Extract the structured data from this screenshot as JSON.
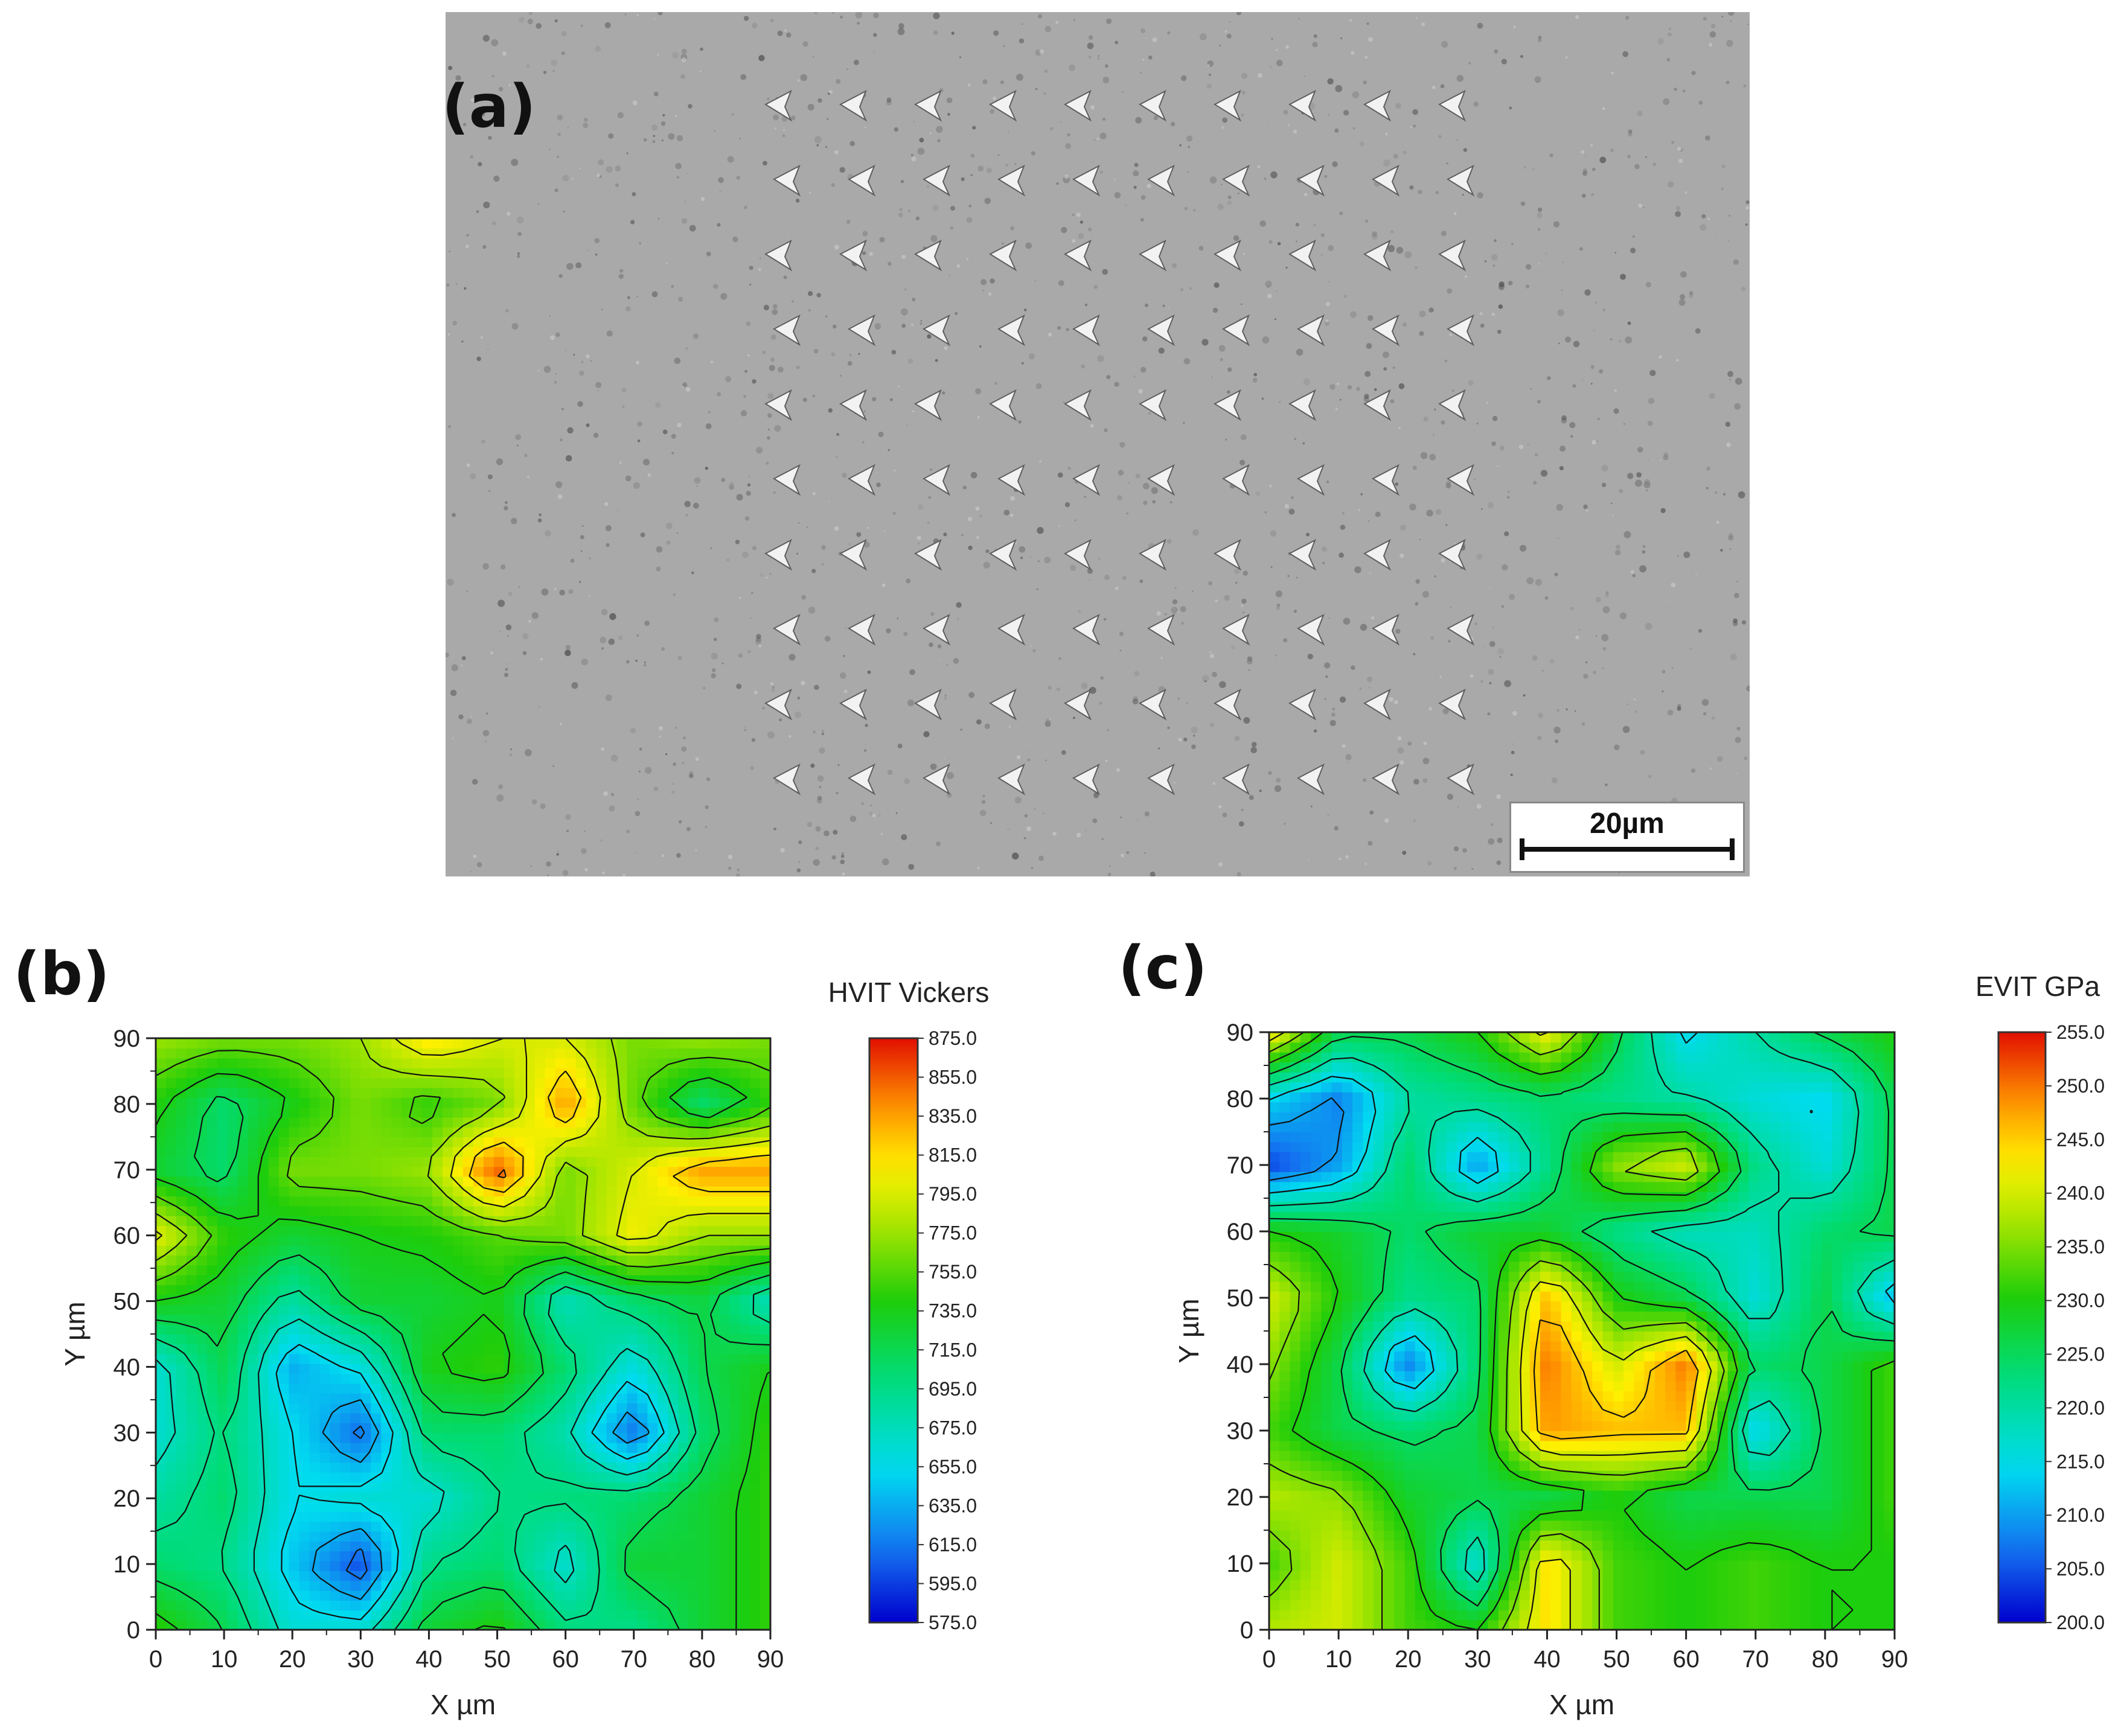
{
  "panels": {
    "a": {
      "letter": "(a)",
      "scalebar": "20µm"
    },
    "b": {
      "letter": "(b)"
    },
    "c": {
      "letter": "(c)"
    }
  },
  "chart_data": [
    {
      "type": "heatmap",
      "panel": "b",
      "title": "",
      "colorbar_title": "HVIT Vickers",
      "xlabel": "X µm",
      "ylabel": "Y µm",
      "xlim": [
        0,
        90
      ],
      "ylim": [
        0,
        90
      ],
      "x_ticks": [
        0,
        10,
        20,
        30,
        40,
        50,
        60,
        70,
        80,
        90
      ],
      "y_ticks": [
        0,
        10,
        20,
        30,
        40,
        50,
        60,
        70,
        80,
        90
      ],
      "colorbar_range": [
        575,
        875
      ],
      "colorbar_ticks": [
        "875.0",
        "855.0",
        "835.0",
        "815.0",
        "795.0",
        "775.0",
        "755.0",
        "735.0",
        "715.0",
        "695.0",
        "675.0",
        "655.0",
        "635.0",
        "615.0",
        "595.0",
        "575.0"
      ],
      "x": [
        0,
        10,
        20,
        30,
        40,
        50,
        60,
        70,
        80,
        90
      ],
      "y": [
        0,
        10,
        20,
        30,
        40,
        50,
        60,
        70,
        80,
        90
      ],
      "z": [
        [
          745,
          715,
          665,
          665,
          725,
          740,
          700,
          695,
          725,
          745
        ],
        [
          705,
          695,
          645,
          600,
          695,
          705,
          665,
          725,
          725,
          745
        ],
        [
          685,
          705,
          655,
          665,
          665,
          695,
          700,
          705,
          725,
          745
        ],
        [
          665,
          700,
          655,
          610,
          705,
          705,
          680,
          615,
          705,
          745
        ],
        [
          665,
          715,
          635,
          660,
          735,
          745,
          705,
          660,
          715,
          735
        ],
        [
          735,
          725,
          685,
          725,
          725,
          735,
          675,
          705,
          720,
          675
        ],
        [
          800,
          745,
          725,
          735,
          740,
          755,
          765,
          805,
          775,
          775
        ],
        [
          725,
          705,
          765,
          765,
          775,
          855,
          765,
          795,
          835,
          835
        ],
        [
          740,
          705,
          735,
          765,
          745,
          765,
          835,
          760,
          705,
          745
        ],
        [
          775,
          765,
          765,
          775,
          815,
          795,
          795,
          765,
          775,
          765
        ]
      ]
    },
    {
      "type": "heatmap",
      "panel": "c",
      "title": "",
      "colorbar_title": "EVIT GPa",
      "xlabel": "X µm",
      "ylabel": "Y µm",
      "xlim": [
        0,
        90
      ],
      "ylim": [
        0,
        90
      ],
      "x_ticks": [
        0,
        10,
        20,
        30,
        40,
        50,
        60,
        70,
        80,
        90
      ],
      "y_ticks": [
        0,
        10,
        20,
        30,
        40,
        50,
        60,
        70,
        80,
        90
      ],
      "colorbar_range": [
        200,
        255
      ],
      "colorbar_ticks": [
        "255.0",
        "250.0",
        "245.0",
        "240.0",
        "235.0",
        "230.0",
        "225.0",
        "220.0",
        "215.0",
        "210.0",
        "205.0",
        "200.0"
      ],
      "x": [
        0,
        10,
        20,
        30,
        40,
        50,
        60,
        70,
        80,
        90
      ],
      "y": [
        0,
        10,
        20,
        30,
        40,
        50,
        60,
        70,
        80,
        90
      ],
      "z": [
        [
          238,
          240,
          232,
          230,
          244,
          232,
          230,
          232,
          230,
          230
        ],
        [
          232,
          240,
          232,
          216,
          244,
          232,
          230,
          232,
          230,
          230
        ],
        [
          238,
          236,
          228,
          226,
          226,
          230,
          226,
          226,
          226,
          232
        ],
        [
          232,
          226,
          224,
          226,
          248,
          246,
          246,
          214,
          226,
          232
        ],
        [
          236,
          226,
          208,
          224,
          250,
          240,
          250,
          224,
          226,
          232
        ],
        [
          240,
          230,
          222,
          224,
          246,
          230,
          226,
          216,
          226,
          212
        ],
        [
          230,
          228,
          224,
          228,
          228,
          222,
          218,
          218,
          224,
          226
        ],
        [
          204,
          210,
          224,
          210,
          222,
          236,
          240,
          222,
          216,
          226
        ],
        [
          214,
          208,
          220,
          222,
          224,
          222,
          220,
          216,
          214,
          226
        ],
        [
          244,
          226,
          226,
          230,
          242,
          226,
          214,
          220,
          226,
          230
        ]
      ]
    }
  ]
}
